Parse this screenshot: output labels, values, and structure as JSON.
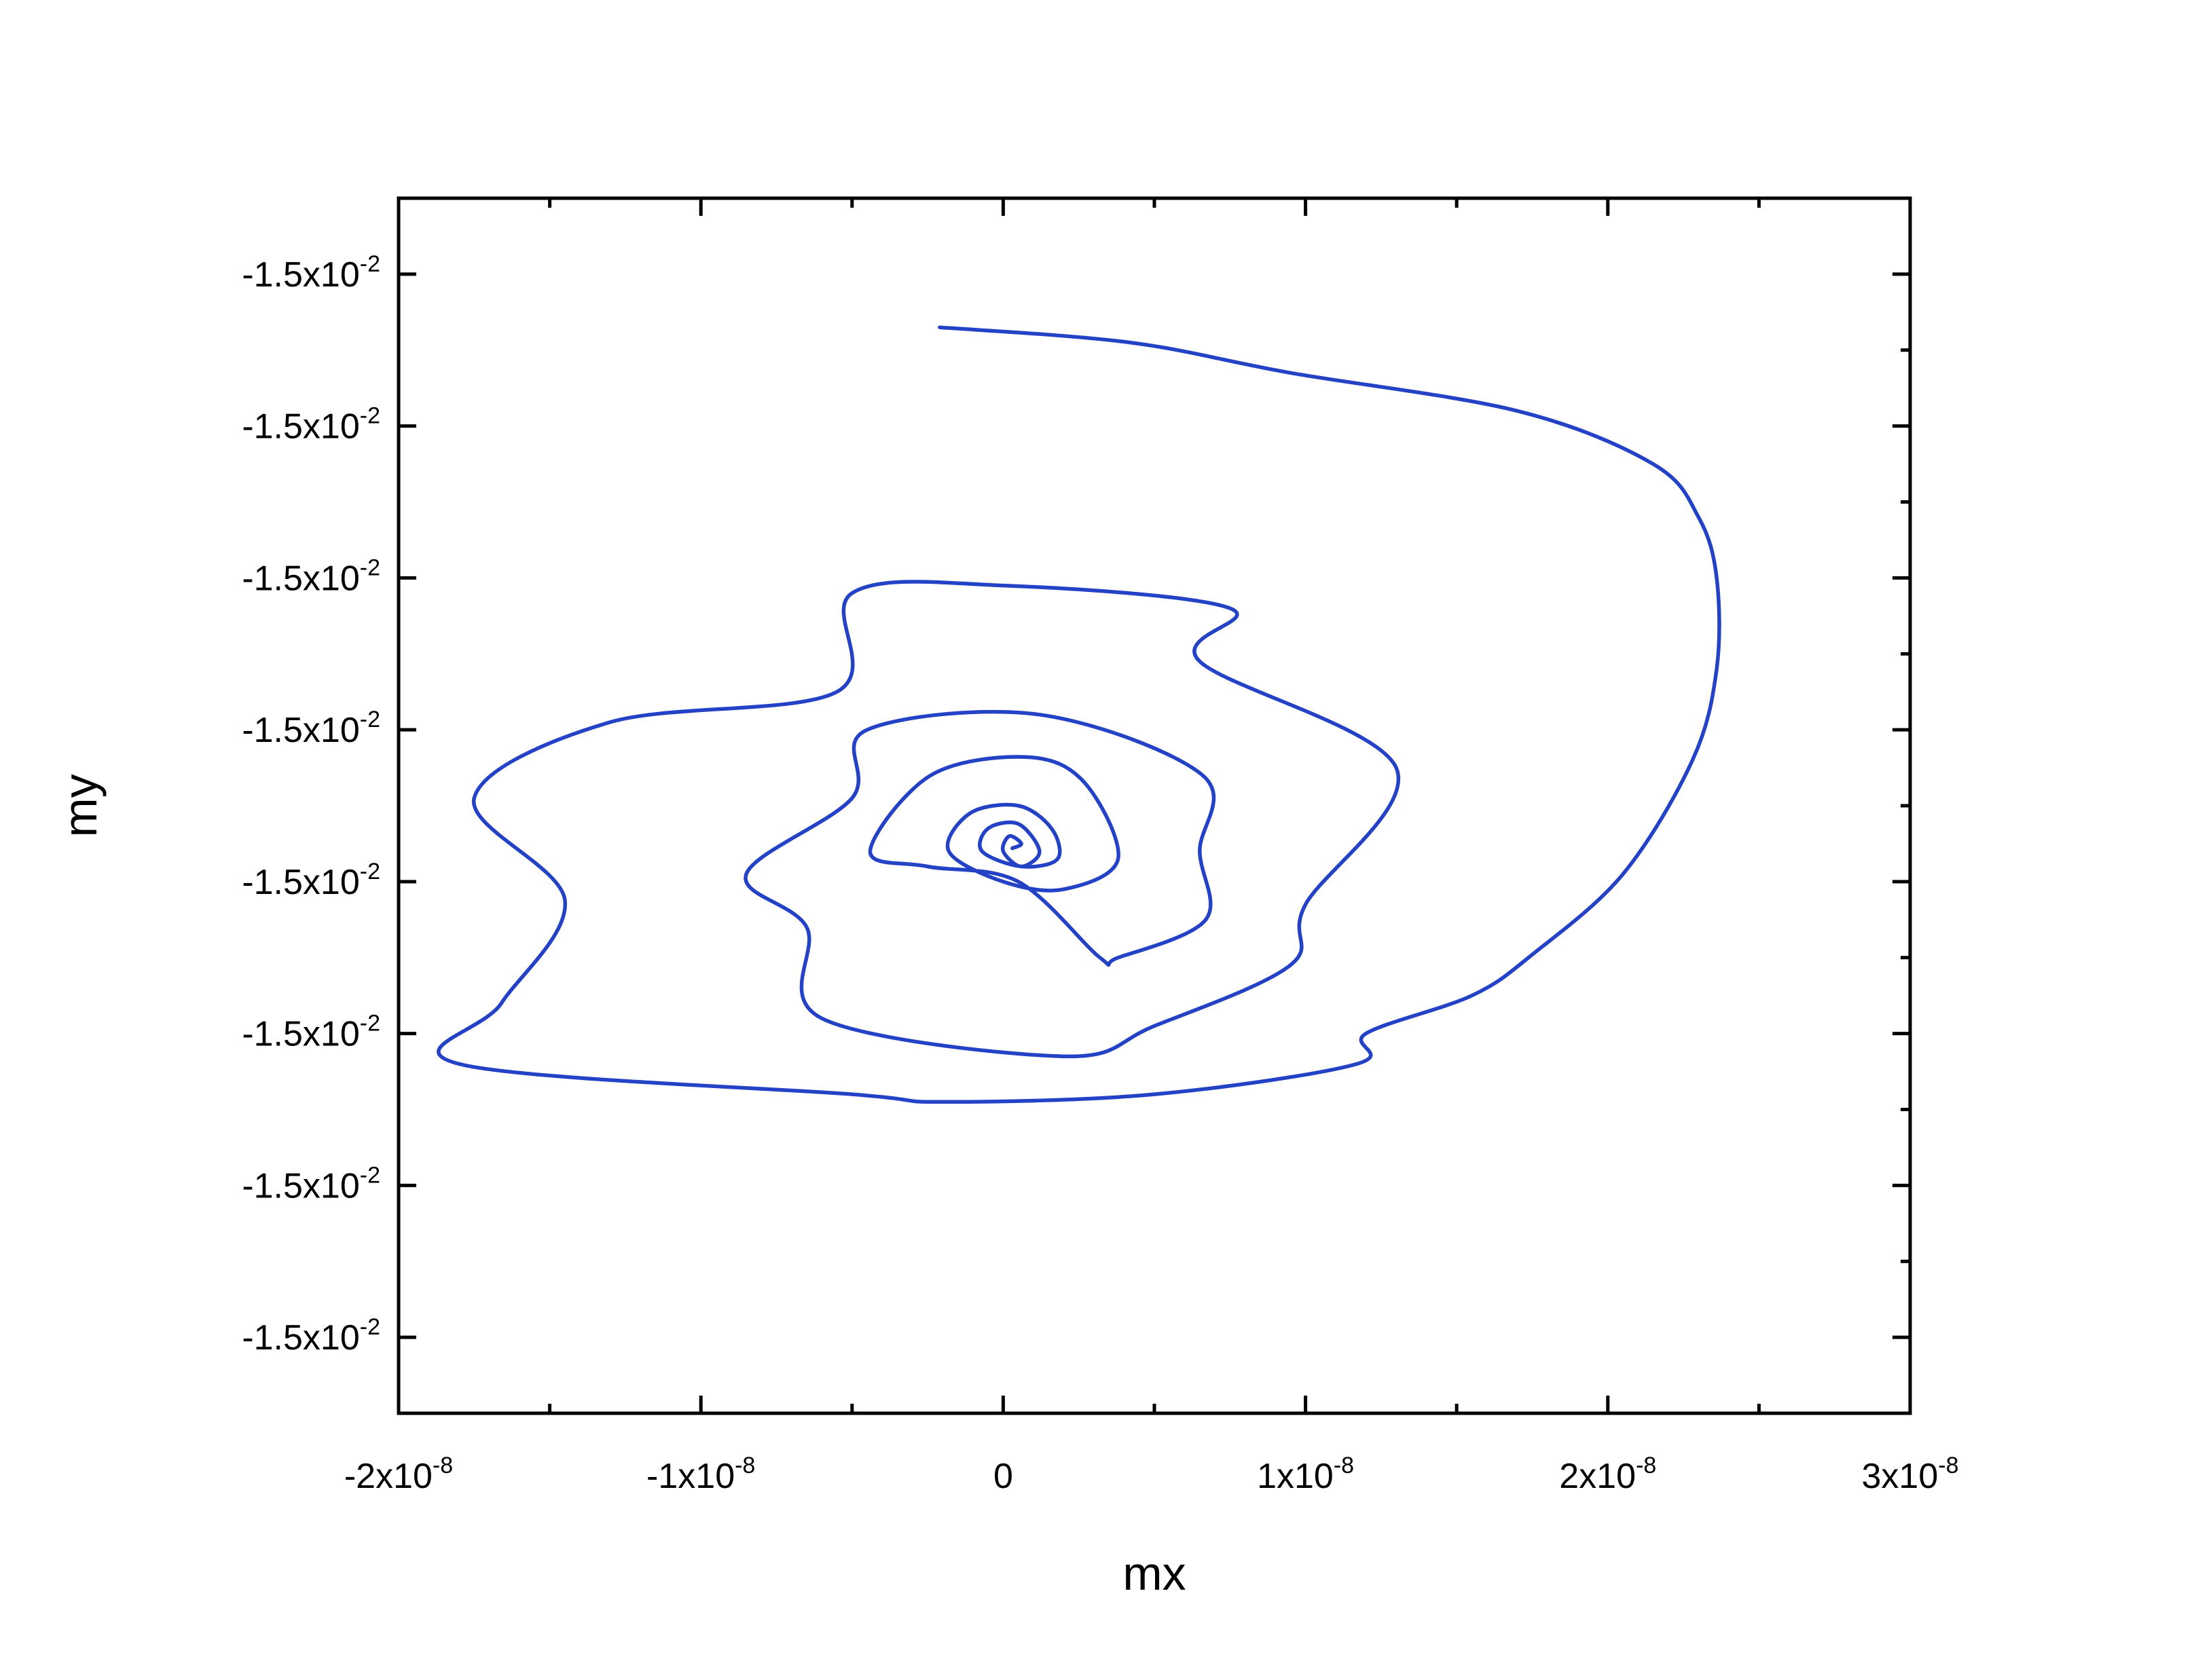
{
  "chart_data": {
    "type": "line",
    "xlabel": "mx",
    "ylabel": "my",
    "x_ticks": [
      {
        "value": -2e-08,
        "base": "-2x10",
        "exp": "-8"
      },
      {
        "value": -1e-08,
        "base": "-1x10",
        "exp": "-8"
      },
      {
        "value": 0,
        "base": "0",
        "exp": ""
      },
      {
        "value": 1e-08,
        "base": "1x10",
        "exp": "-8"
      },
      {
        "value": 2e-08,
        "base": "2x10",
        "exp": "-8"
      },
      {
        "value": 3e-08,
        "base": "3x10",
        "exp": "-8"
      }
    ],
    "y_ticks": [
      {
        "index": 7,
        "base": "-1.5x10",
        "exp": "-2"
      },
      {
        "index": 6,
        "base": "-1.5x10",
        "exp": "-2"
      },
      {
        "index": 5,
        "base": "-1.5x10",
        "exp": "-2"
      },
      {
        "index": 4,
        "base": "-1.5x10",
        "exp": "-2"
      },
      {
        "index": 3,
        "base": "-1.5x10",
        "exp": "-2"
      },
      {
        "index": 2,
        "base": "-1.5x10",
        "exp": "-2"
      },
      {
        "index": 1,
        "base": "-1.5x10",
        "exp": "-2"
      },
      {
        "index": 0,
        "base": "-1.5x10",
        "exp": "-2"
      }
    ],
    "xlim": [
      -2e-08,
      3e-08
    ],
    "ylim_index": [
      -0.5,
      7.5
    ],
    "grid": false,
    "legend": "none",
    "series": [
      {
        "color": "#2342c6",
        "x": [
          -2.1e-09,
          4.2e-09,
          9.5e-09,
          1.7e-08,
          2.15e-08,
          2.3e-08,
          2.36e-08,
          2.36e-08,
          2.28e-08,
          2.05e-08,
          1.75e-08,
          1.55e-08,
          1.2e-08,
          1.17e-08,
          5e-09,
          -2e-09,
          -5e-09,
          -1.8e-08,
          -1.66e-08,
          -1.45e-08,
          -1.75e-08,
          -1.3e-08,
          -5.5e-09,
          -5e-09,
          0,
          7.5e-09,
          6.5e-09,
          1.3e-08,
          1e-08,
          9.5e-09,
          5e-09,
          2e-09,
          -6e-09,
          -6.5e-09,
          -8.5e-09,
          -5e-09,
          -4.5e-09,
          1.2e-09,
          6.6e-09,
          6.5e-09,
          6.7e-09,
          3.8e-09,
          3.2e-09,
          5e-10,
          -2.5e-09,
          -4.4e-09,
          -2.4e-09,
          8e-10,
          2.7e-09,
          3.8e-09,
          2e-09,
          0,
          -1.8e-09,
          -1.1e-09,
          5e-10,
          1.6e-09,
          1.8e-09,
          6e-10,
          -7e-10,
          -5e-10,
          5e-10,
          1.2e-09,
          6e-10,
          0,
          2e-10,
          6e-10,
          3e-10
        ],
        "y_index": [
          6.65,
          6.55,
          6.35,
          6.1,
          5.75,
          5.4,
          5.0,
          4.4,
          3.8,
          3.05,
          2.52,
          2.25,
          2.0,
          1.8,
          1.6,
          1.55,
          1.6,
          1.8,
          2.2,
          2.88,
          3.55,
          4.05,
          4.25,
          4.9,
          4.95,
          4.8,
          4.45,
          3.75,
          2.85,
          2.45,
          2.05,
          1.85,
          2.1,
          2.7,
          3.05,
          3.55,
          4.0,
          4.1,
          3.7,
          3.2,
          2.75,
          2.5,
          2.5,
          3.0,
          3.1,
          3.2,
          3.7,
          3.82,
          3.65,
          3.15,
          2.95,
          3.0,
          3.2,
          3.45,
          3.5,
          3.35,
          3.15,
          3.1,
          3.2,
          3.35,
          3.38,
          3.2,
          3.1,
          3.2,
          3.3,
          3.25,
          3.22
        ]
      }
    ]
  }
}
